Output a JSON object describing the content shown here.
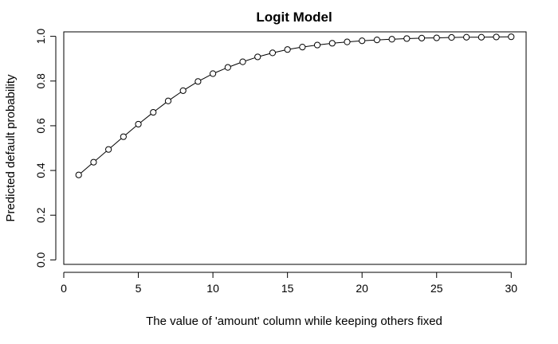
{
  "chart_data": {
    "type": "line",
    "title": "Logit Model",
    "xlabel": "The value of 'amount' column while keeping others fixed",
    "ylabel": "Predicted default probability",
    "xlim": [
      0,
      31
    ],
    "ylim": [
      -0.02,
      1.02
    ],
    "x_ticks": [
      0,
      5,
      10,
      15,
      20,
      25,
      30
    ],
    "y_ticks": [
      0.0,
      0.2,
      0.4,
      0.6,
      0.8,
      1.0
    ],
    "x_tick_labels": [
      "0",
      "5",
      "10",
      "15",
      "20",
      "25",
      "30"
    ],
    "y_tick_labels": [
      "0.0",
      "0.2",
      "0.4",
      "0.6",
      "0.8",
      "1.0"
    ],
    "marker": "open-circle",
    "line_color": "#000000",
    "series": [
      {
        "x": [
          1,
          2,
          3,
          4,
          5,
          6,
          7,
          8,
          9,
          10,
          11,
          12,
          13,
          14,
          15,
          16,
          17,
          18,
          19,
          20,
          21,
          22,
          23,
          24,
          25,
          26,
          27,
          28,
          29,
          30
        ],
        "y": [
          0.38,
          0.437,
          0.494,
          0.551,
          0.607,
          0.66,
          0.711,
          0.757,
          0.798,
          0.833,
          0.861,
          0.886,
          0.908,
          0.926,
          0.941,
          0.952,
          0.961,
          0.969,
          0.975,
          0.98,
          0.984,
          0.987,
          0.99,
          0.992,
          0.993,
          0.995,
          0.996,
          0.996,
          0.997,
          0.998
        ]
      }
    ]
  }
}
